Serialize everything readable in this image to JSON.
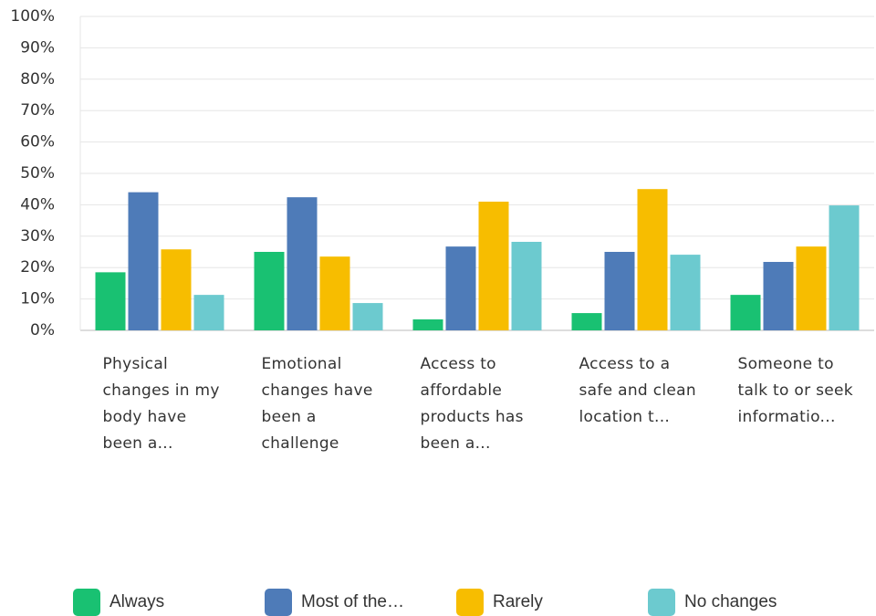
{
  "chart_data": {
    "type": "bar",
    "categories": [
      "Physical changes in my body have been a...",
      "Emotional changes have been a challenge",
      "Access to affordable products has been a...",
      "Access to a safe and clean location t...",
      "Someone to talk to or seek informatio..."
    ],
    "series": [
      {
        "name": "Always",
        "color": "#19c172",
        "values": [
          18.5,
          25,
          3.5,
          5.5,
          11.3
        ]
      },
      {
        "name": "Most of the…",
        "color": "#4e7bb8",
        "values": [
          44,
          42.4,
          26.7,
          25,
          21.8
        ]
      },
      {
        "name": "Rarely",
        "color": "#f7bd00",
        "values": [
          25.8,
          23.5,
          41,
          45,
          26.7
        ]
      },
      {
        "name": "No changes",
        "color": "#6ccacf",
        "values": [
          11.3,
          8.7,
          28.2,
          24.1,
          39.8
        ]
      }
    ],
    "ylim": [
      0,
      100
    ],
    "yticks": [
      {
        "value": 0,
        "label": "0%"
      },
      {
        "value": 10,
        "label": "10%"
      },
      {
        "value": 20,
        "label": "20%"
      },
      {
        "value": 30,
        "label": "30%"
      },
      {
        "value": 40,
        "label": "40%"
      },
      {
        "value": 50,
        "label": "50%"
      },
      {
        "value": 60,
        "label": "60%"
      },
      {
        "value": 70,
        "label": "70%"
      },
      {
        "value": 80,
        "label": "80%"
      },
      {
        "value": 90,
        "label": "90%"
      },
      {
        "value": 100,
        "label": "100%"
      }
    ],
    "grid": true
  }
}
